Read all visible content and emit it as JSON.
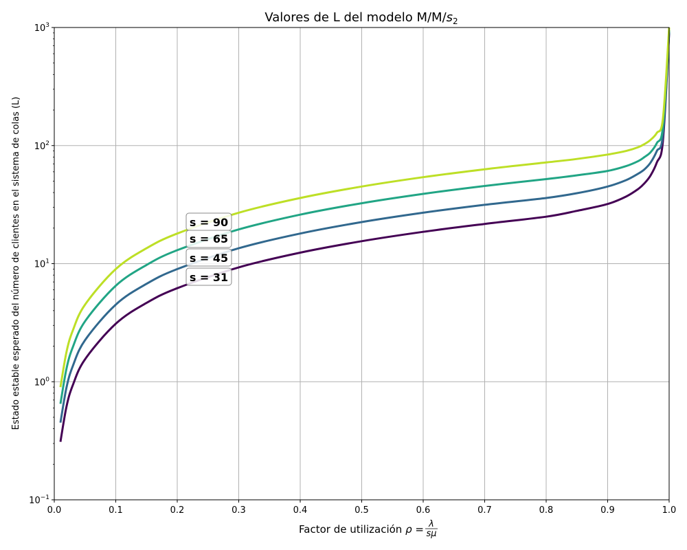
{
  "chart_data": {
    "type": "line",
    "title_text": "Valores de L del modelo M/M/",
    "title_math_var": "s",
    "title_math_sub": "2",
    "xlabel_text": "Factor de utilización ",
    "xlabel_math_lhs": "ρ = ",
    "xlabel_math_num": "λ",
    "xlabel_math_den": "sμ",
    "ylabel": "Estado estable esperado del número de clientes en el sistema de colas (L)",
    "xlim": [
      0.0,
      1.0
    ],
    "ylim": [
      0.1,
      1000
    ],
    "yscale": "log",
    "grid": true,
    "x_tick_labels": [
      "0.0",
      "0.1",
      "0.2",
      "0.3",
      "0.4",
      "0.5",
      "0.6",
      "0.7",
      "0.8",
      "0.9",
      "1.0"
    ],
    "y_tick_labels": [
      {
        "base": "10",
        "exp": "−1"
      },
      {
        "base": "10",
        "exp": "0"
      },
      {
        "base": "10",
        "exp": "1"
      },
      {
        "base": "10",
        "exp": "2"
      },
      {
        "base": "10",
        "exp": "3"
      }
    ],
    "x": [
      0.01,
      0.02,
      0.03,
      0.05,
      0.1,
      0.15,
      0.2,
      0.3,
      0.4,
      0.5,
      0.6,
      0.7,
      0.8,
      0.85,
      0.9,
      0.93,
      0.95,
      0.96,
      0.97,
      0.98,
      0.99,
      1.0
    ],
    "series": [
      {
        "name": "s = 31",
        "color": "#440154",
        "values": [
          0.31,
          0.62,
          0.93,
          1.55,
          3.1,
          4.65,
          6.2,
          9.3,
          12.4,
          15.5,
          18.6,
          21.7,
          25,
          28,
          32,
          37,
          43,
          48,
          56,
          72,
          110,
          900
        ]
      },
      {
        "name": "s = 45",
        "color": "#31688e",
        "values": [
          0.45,
          0.9,
          1.35,
          2.25,
          4.5,
          6.75,
          9.0,
          13.5,
          18,
          22.5,
          27,
          31.5,
          36,
          39.5,
          45,
          51,
          58,
          63,
          72,
          90,
          125,
          920
        ]
      },
      {
        "name": "s = 65",
        "color": "#21a585",
        "values": [
          0.65,
          1.3,
          1.95,
          3.25,
          6.5,
          9.75,
          13,
          19.5,
          26,
          32.5,
          39,
          45.5,
          52,
          56,
          61,
          67,
          74,
          80,
          88,
          105,
          145,
          950
        ]
      },
      {
        "name": "s = 90",
        "color": "#bddf26",
        "values": [
          0.9,
          1.8,
          2.7,
          4.5,
          9,
          13.5,
          18,
          27,
          36,
          45,
          54,
          63,
          72,
          77,
          84,
          90,
          97,
          103,
          112,
          128,
          170,
          1000
        ]
      }
    ],
    "annotations": [
      "s = 90",
      "s = 65",
      "s = 45",
      "s = 31"
    ]
  }
}
